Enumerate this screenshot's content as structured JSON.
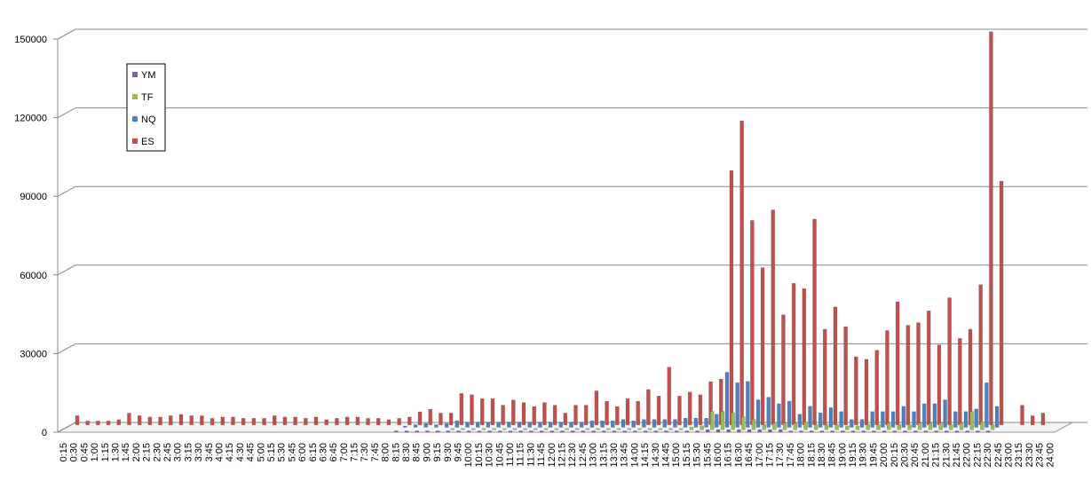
{
  "chart_data": {
    "type": "bar3d",
    "categories": [
      "0:15",
      "0:30",
      "0:45",
      "1:00",
      "1:15",
      "1:30",
      "1:45",
      "2:00",
      "2:15",
      "2:30",
      "2:45",
      "3:00",
      "3:15",
      "3:30",
      "3:45",
      "4:00",
      "4:15",
      "4:30",
      "4:45",
      "5:00",
      "5:15",
      "5:30",
      "5:45",
      "6:00",
      "6:15",
      "6:30",
      "6:45",
      "7:00",
      "7:15",
      "7:30",
      "7:45",
      "8:00",
      "8:15",
      "8:30",
      "8:45",
      "9:00",
      "9:15",
      "9:30",
      "9:45",
      "10:00",
      "10:15",
      "10:30",
      "10:45",
      "11:00",
      "11:15",
      "11:30",
      "11:45",
      "12:00",
      "12:15",
      "12:30",
      "12:45",
      "13:00",
      "13:15",
      "13:30",
      "13:45",
      "14:00",
      "14:15",
      "14:30",
      "14:45",
      "15:00",
      "15:15",
      "15:30",
      "15:45",
      "16:00",
      "16:15",
      "16:30",
      "16:45",
      "17:00",
      "17:15",
      "17:30",
      "17:45",
      "18:00",
      "18:15",
      "18:30",
      "18:45",
      "19:00",
      "19:15",
      "19:30",
      "19:45",
      "20:00",
      "20:15",
      "20:30",
      "20:45",
      "21:00",
      "21:15",
      "21:30",
      "21:45",
      "22:00",
      "22:15",
      "22:30",
      "22:45",
      "23:00",
      "23:15",
      "23:30",
      "23:45",
      "24:00"
    ],
    "series": [
      {
        "name": "YM",
        "color": "#8064a2",
        "values": [
          0,
          0,
          0,
          0,
          0,
          0,
          0,
          0,
          0,
          0,
          0,
          0,
          0,
          0,
          0,
          0,
          0,
          0,
          0,
          0,
          0,
          0,
          0,
          0,
          0,
          0,
          0,
          0,
          0,
          0,
          0,
          0,
          500,
          500,
          500,
          500,
          500,
          500,
          500,
          500,
          500,
          500,
          500,
          500,
          500,
          500,
          500,
          500,
          500,
          500,
          500,
          500,
          500,
          500,
          500,
          500,
          500,
          500,
          500,
          500,
          500,
          500,
          1000,
          1000,
          1000,
          1000,
          1000,
          1000,
          1000,
          1000,
          500,
          500,
          500,
          500,
          500,
          500,
          500,
          500,
          500,
          500,
          500,
          500,
          500,
          500,
          500,
          500,
          500,
          500,
          500,
          500,
          0,
          0,
          0,
          0,
          0,
          0
        ]
      },
      {
        "name": "TF",
        "color": "#9bbb59",
        "values": [
          0,
          0,
          0,
          0,
          0,
          0,
          0,
          0,
          0,
          0,
          0,
          0,
          0,
          0,
          0,
          0,
          0,
          0,
          0,
          0,
          0,
          0,
          0,
          0,
          0,
          0,
          0,
          0,
          0,
          0,
          0,
          0,
          0,
          0,
          0,
          0,
          0,
          500,
          500,
          500,
          500,
          500,
          500,
          500,
          500,
          500,
          500,
          500,
          500,
          500,
          500,
          500,
          500,
          500,
          500,
          500,
          500,
          500,
          500,
          500,
          1000,
          1500,
          7000,
          7000,
          6500,
          5000,
          4000,
          2000,
          2500,
          2500,
          2500,
          3000,
          2000,
          2000,
          2000,
          1500,
          1500,
          2000,
          2000,
          2500,
          2000,
          2000,
          2500,
          2500,
          2500,
          2000,
          2500,
          7000,
          3000,
          2000,
          0,
          0,
          0,
          0,
          0,
          0
        ]
      },
      {
        "name": "NQ",
        "color": "#4f81bd",
        "values": [
          0,
          0,
          0,
          0,
          0,
          0,
          0,
          0,
          0,
          0,
          0,
          0,
          0,
          0,
          0,
          0,
          0,
          0,
          0,
          0,
          0,
          0,
          0,
          0,
          0,
          0,
          0,
          0,
          0,
          0,
          0,
          0,
          500,
          1000,
          1500,
          1000,
          1500,
          2500,
          2000,
          2000,
          2000,
          2000,
          2000,
          2000,
          2000,
          2000,
          2000,
          2000,
          2000,
          2000,
          2500,
          2500,
          2500,
          3000,
          2500,
          3000,
          3000,
          3000,
          3000,
          3500,
          3500,
          3500,
          5000,
          21000,
          17000,
          17500,
          10500,
          11500,
          9000,
          10000,
          5000,
          8000,
          5500,
          7500,
          6000,
          3000,
          3000,
          6000,
          6000,
          6000,
          8000,
          6000,
          9000,
          9000,
          10500,
          6000,
          6000,
          7000,
          17000,
          8000,
          0,
          0,
          0,
          0,
          0,
          0
        ]
      },
      {
        "name": "ES",
        "color": "#c0504d",
        "values": [
          3500,
          1500,
          1500,
          1500,
          2000,
          4500,
          3500,
          3000,
          3000,
          3500,
          4000,
          3500,
          3500,
          2500,
          3000,
          3000,
          2500,
          2500,
          2500,
          3500,
          3000,
          3000,
          2500,
          3000,
          2000,
          2500,
          3000,
          3000,
          2500,
          2500,
          2000,
          2500,
          3000,
          5000,
          6000,
          4500,
          4500,
          12000,
          11500,
          10000,
          10000,
          7500,
          9500,
          8500,
          7000,
          8500,
          7500,
          4500,
          7500,
          7500,
          13000,
          9000,
          7000,
          10000,
          9000,
          13500,
          11000,
          22000,
          11000,
          12500,
          11500,
          16500,
          17500,
          97000,
          116000,
          78000,
          60000,
          82000,
          42000,
          54000,
          52000,
          78500,
          36500,
          45000,
          37500,
          26000,
          25000,
          28500,
          36000,
          47000,
          38000,
          39000,
          43500,
          30500,
          48500,
          33000,
          36500,
          53500,
          150000,
          93000,
          0,
          7500,
          3500,
          4500,
          0,
          0
        ]
      }
    ],
    "ylim": [
      0,
      150000
    ],
    "yticks": [
      0,
      30000,
      60000,
      90000,
      120000,
      150000
    ],
    "grid": true,
    "legend": "upper left"
  }
}
